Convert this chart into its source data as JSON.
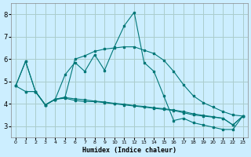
{
  "xlabel": "Humidex (Indice chaleur)",
  "bg_color": "#cceeff",
  "grid_color": "#aacccc",
  "line_color": "#007777",
  "xlim": [
    -0.5,
    23.5
  ],
  "ylim": [
    2.5,
    8.5
  ],
  "yticks": [
    3,
    4,
    5,
    6,
    7,
    8
  ],
  "xticks": [
    0,
    1,
    2,
    3,
    4,
    5,
    6,
    7,
    8,
    9,
    10,
    11,
    12,
    13,
    14,
    15,
    16,
    17,
    18,
    19,
    20,
    21,
    22,
    23
  ],
  "line1_x": [
    0,
    1,
    2,
    3,
    4,
    5,
    6,
    7,
    8,
    9,
    10,
    11,
    12,
    13,
    14,
    15,
    16,
    17,
    18,
    19,
    20,
    21,
    22,
    23
  ],
  "line1_y": [
    4.8,
    5.9,
    4.55,
    3.95,
    4.2,
    5.3,
    5.85,
    5.45,
    6.2,
    5.5,
    6.55,
    7.5,
    8.1,
    5.85,
    5.45,
    4.35,
    3.25,
    3.35,
    3.15,
    3.05,
    2.95,
    2.85,
    2.85,
    3.45
  ],
  "line2_x": [
    0,
    1,
    2,
    3,
    4,
    5,
    6,
    7,
    8,
    9,
    10,
    11,
    12,
    13,
    14,
    15,
    16,
    17,
    18,
    19,
    20,
    21,
    22,
    23
  ],
  "line2_y": [
    4.8,
    5.9,
    4.55,
    3.95,
    4.2,
    4.25,
    4.15,
    4.1,
    4.1,
    4.05,
    4.0,
    3.95,
    3.9,
    3.85,
    3.8,
    3.75,
    3.7,
    3.6,
    3.5,
    3.45,
    3.4,
    3.35,
    3.05,
    3.45
  ],
  "line3_x": [
    0,
    1,
    2,
    3,
    4,
    5,
    6,
    7,
    8,
    9,
    10,
    11,
    12,
    13,
    14,
    15,
    16,
    17,
    18,
    19,
    20,
    21,
    22,
    23
  ],
  "line3_y": [
    4.8,
    4.55,
    4.55,
    3.95,
    4.2,
    4.3,
    6.0,
    6.15,
    6.35,
    6.45,
    6.5,
    6.55,
    6.55,
    6.4,
    6.25,
    5.95,
    5.45,
    4.85,
    4.35,
    4.05,
    3.85,
    3.65,
    3.5,
    3.45
  ],
  "line4_x": [
    1,
    2,
    3,
    4,
    5,
    6,
    7,
    8,
    9,
    10,
    11,
    12,
    13,
    14,
    15,
    16,
    17,
    18,
    19,
    20,
    21,
    22,
    23
  ],
  "line4_y": [
    4.55,
    4.55,
    3.95,
    4.2,
    4.28,
    4.22,
    4.18,
    4.12,
    4.08,
    4.02,
    3.98,
    3.92,
    3.88,
    3.82,
    3.78,
    3.72,
    3.65,
    3.55,
    3.48,
    3.42,
    3.35,
    3.05,
    3.45
  ]
}
